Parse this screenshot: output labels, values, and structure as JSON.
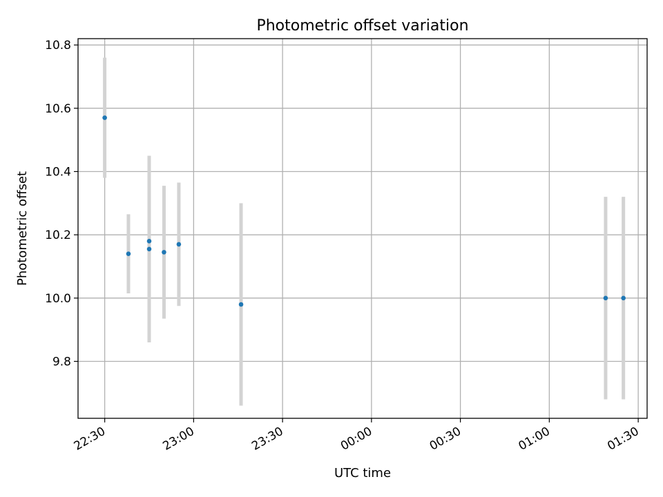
{
  "chart_data": {
    "type": "scatter",
    "title": "Photometric offset variation",
    "xlabel": "UTC time",
    "ylabel": "Photometric offset",
    "x_ticks": [
      "22:30",
      "23:00",
      "23:30",
      "00:00",
      "00:30",
      "01:00",
      "01:30"
    ],
    "y_ticks": [
      "9.8",
      "10.0",
      "10.2",
      "10.4",
      "10.6",
      "10.8"
    ],
    "xlim": [
      "22:21",
      "01:33"
    ],
    "ylim": [
      9.62,
      10.82
    ],
    "grid": true,
    "legend": "none",
    "series": [
      {
        "marker_color": "#1f77b4",
        "errorbar_color": "#d3d3d3",
        "points": [
          {
            "x": "22:30",
            "y": 10.57,
            "err": 0.19
          },
          {
            "x": "22:38",
            "y": 10.14,
            "err": 0.125
          },
          {
            "x": "22:45",
            "y": 10.155,
            "err": 0.295
          },
          {
            "x": "22:45",
            "y": 10.18,
            "err": 0.255
          },
          {
            "x": "22:50",
            "y": 10.145,
            "err": 0.21
          },
          {
            "x": "22:55",
            "y": 10.17,
            "err": 0.195
          },
          {
            "x": "23:16",
            "y": 9.98,
            "err": 0.32
          },
          {
            "x": "01:19",
            "y": 10.0,
            "err": 0.32
          },
          {
            "x": "01:25",
            "y": 10.0,
            "err": 0.32
          }
        ]
      }
    ]
  }
}
